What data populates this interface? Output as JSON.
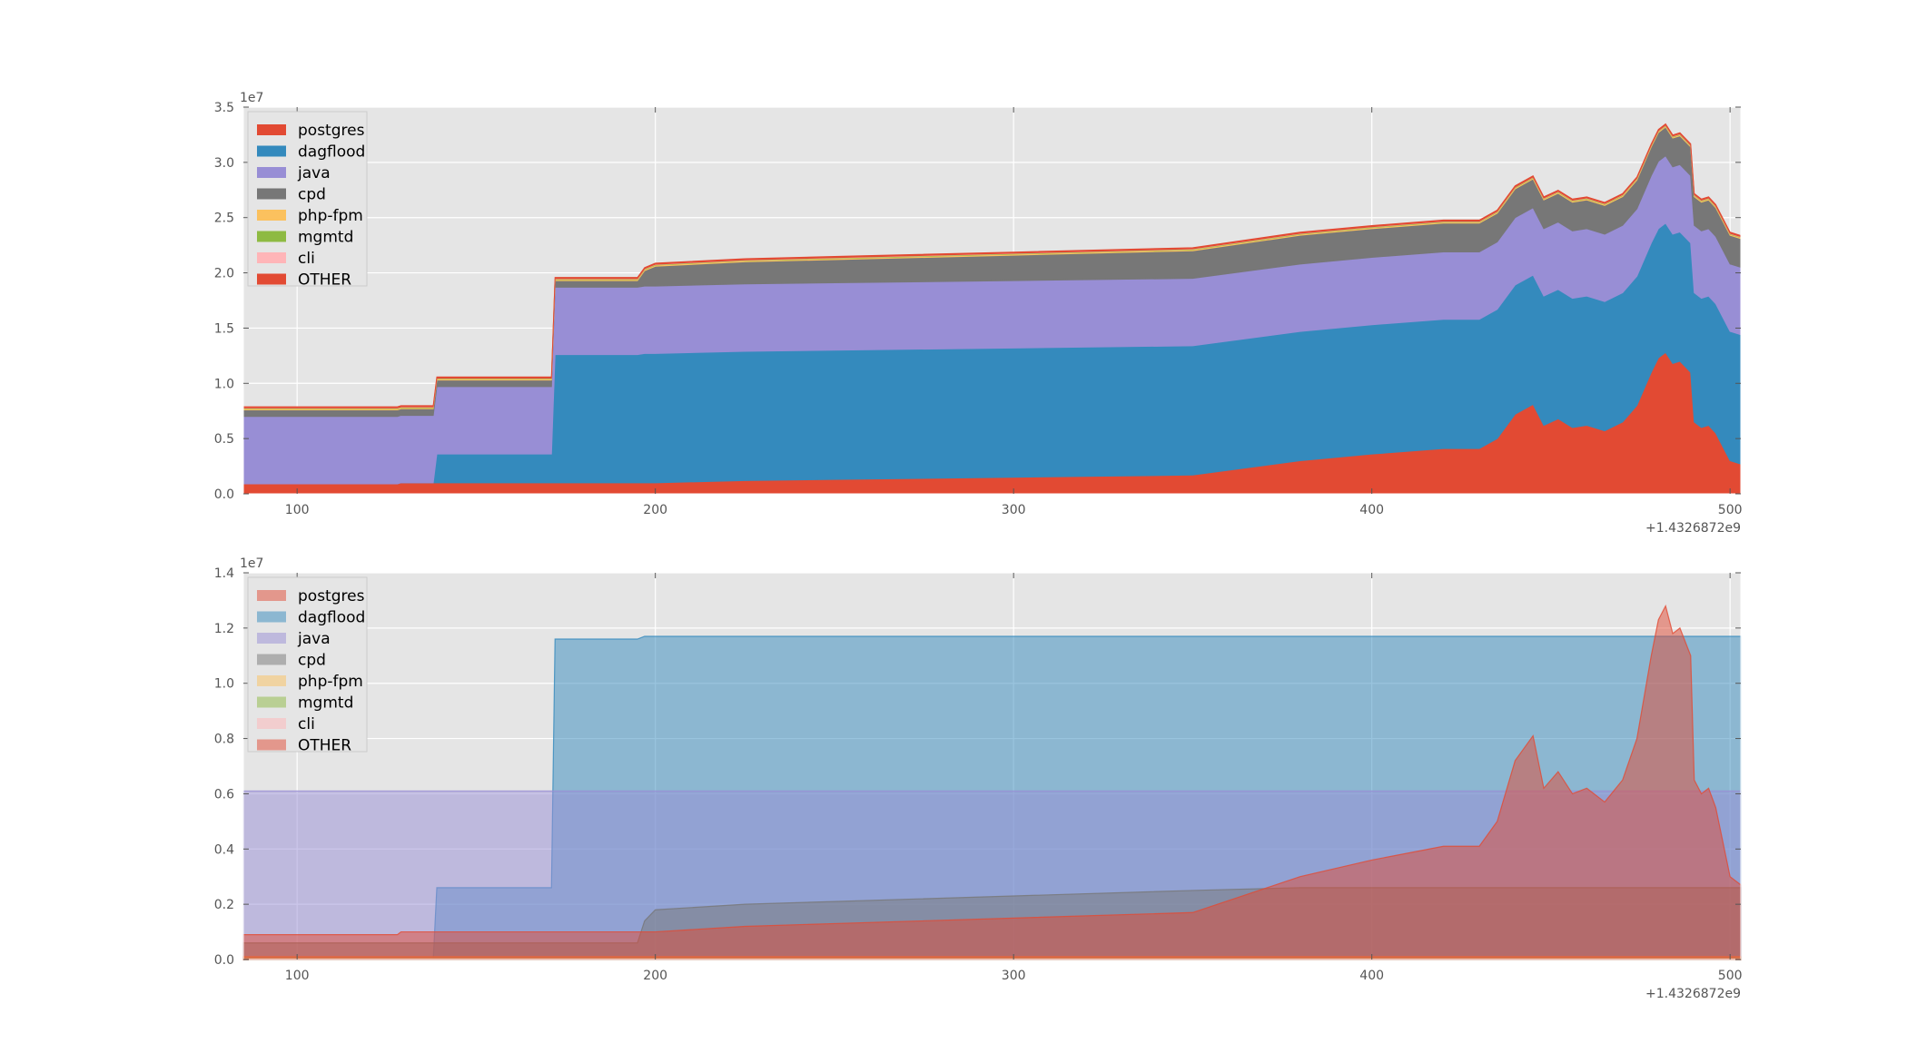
{
  "chart_data": [
    {
      "type": "area",
      "stacked": true,
      "x_offset_label": "+1.4326872e9",
      "y_scale_label": "1e7",
      "xlim": [
        85,
        503
      ],
      "ylim": [
        0,
        3.5
      ],
      "xticks": [
        100,
        200,
        300,
        400,
        500
      ],
      "yticks": [
        0.0,
        0.5,
        1.0,
        1.5,
        2.0,
        2.5,
        3.0,
        3.5
      ],
      "grid": true,
      "legend_position": "top-left",
      "series_names": [
        "postgres",
        "dagflood",
        "java",
        "cpd",
        "php-fpm",
        "mgmtd",
        "cli",
        "OTHER"
      ],
      "colors": [
        "#E24A33",
        "#348ABD",
        "#988ED5",
        "#777777",
        "#FBC15E",
        "#8EBA42",
        "#FFB5B8",
        "#E24A33"
      ],
      "x": [
        85,
        128,
        129,
        138,
        139,
        171,
        172,
        195,
        197,
        200,
        225,
        250,
        300,
        350,
        380,
        400,
        420,
        430,
        435,
        440,
        445,
        448,
        452,
        456,
        460,
        465,
        470,
        474,
        478,
        480,
        482,
        484,
        486,
        489,
        490,
        492,
        494,
        496,
        500,
        503
      ],
      "series": [
        {
          "name": "postgres",
          "values": [
            0.09,
            0.09,
            0.1,
            0.1,
            0.1,
            0.1,
            0.1,
            0.1,
            0.1,
            0.1,
            0.12,
            0.13,
            0.15,
            0.17,
            0.3,
            0.36,
            0.41,
            0.41,
            0.5,
            0.72,
            0.81,
            0.62,
            0.68,
            0.6,
            0.62,
            0.57,
            0.65,
            0.8,
            1.1,
            1.23,
            1.28,
            1.18,
            1.2,
            1.1,
            0.65,
            0.6,
            0.62,
            0.55,
            0.3,
            0.27
          ]
        },
        {
          "name": "dagflood",
          "values": [
            0.0,
            0.0,
            0.0,
            0.0,
            0.26,
            0.26,
            1.16,
            1.16,
            1.17,
            1.17,
            1.17,
            1.17,
            1.17,
            1.17,
            1.17,
            1.17,
            1.17,
            1.17,
            1.17,
            1.17,
            1.17,
            1.17,
            1.17,
            1.17,
            1.17,
            1.17,
            1.17,
            1.17,
            1.17,
            1.17,
            1.17,
            1.17,
            1.17,
            1.17,
            1.17,
            1.17,
            1.17,
            1.17,
            1.17,
            1.17
          ]
        },
        {
          "name": "java",
          "values": [
            0.61,
            0.61,
            0.61,
            0.61,
            0.61,
            0.61,
            0.61,
            0.61,
            0.61,
            0.61,
            0.61,
            0.61,
            0.61,
            0.61,
            0.61,
            0.61,
            0.61,
            0.61,
            0.61,
            0.61,
            0.61,
            0.61,
            0.61,
            0.61,
            0.61,
            0.61,
            0.61,
            0.61,
            0.61,
            0.61,
            0.61,
            0.61,
            0.61,
            0.61,
            0.61,
            0.61,
            0.61,
            0.61,
            0.61,
            0.61
          ]
        },
        {
          "name": "cpd",
          "values": [
            0.06,
            0.06,
            0.06,
            0.06,
            0.06,
            0.06,
            0.06,
            0.06,
            0.14,
            0.18,
            0.2,
            0.21,
            0.23,
            0.25,
            0.26,
            0.26,
            0.26,
            0.26,
            0.26,
            0.26,
            0.26,
            0.26,
            0.26,
            0.26,
            0.26,
            0.26,
            0.26,
            0.26,
            0.26,
            0.26,
            0.26,
            0.26,
            0.26,
            0.26,
            0.26,
            0.26,
            0.26,
            0.26,
            0.26,
            0.26
          ]
        },
        {
          "name": "php-fpm",
          "values": [
            0.01,
            0.01,
            0.01,
            0.01,
            0.01,
            0.01,
            0.01,
            0.01,
            0.01,
            0.01,
            0.01,
            0.01,
            0.01,
            0.01,
            0.01,
            0.01,
            0.01,
            0.01,
            0.01,
            0.01,
            0.01,
            0.01,
            0.01,
            0.01,
            0.01,
            0.01,
            0.01,
            0.01,
            0.01,
            0.01,
            0.01,
            0.01,
            0.01,
            0.01,
            0.01,
            0.01,
            0.01,
            0.01,
            0.01,
            0.01
          ]
        },
        {
          "name": "mgmtd",
          "values": [
            0.005,
            0.005,
            0.005,
            0.005,
            0.005,
            0.005,
            0.005,
            0.005,
            0.005,
            0.005,
            0.005,
            0.005,
            0.005,
            0.005,
            0.005,
            0.005,
            0.005,
            0.005,
            0.005,
            0.005,
            0.005,
            0.005,
            0.005,
            0.005,
            0.005,
            0.005,
            0.005,
            0.005,
            0.005,
            0.005,
            0.005,
            0.005,
            0.005,
            0.005,
            0.005,
            0.005,
            0.005,
            0.005,
            0.005,
            0.005
          ]
        },
        {
          "name": "cli",
          "values": [
            0.003,
            0.003,
            0.003,
            0.003,
            0.003,
            0.003,
            0.003,
            0.003,
            0.003,
            0.003,
            0.003,
            0.003,
            0.003,
            0.003,
            0.003,
            0.003,
            0.003,
            0.003,
            0.003,
            0.003,
            0.003,
            0.003,
            0.003,
            0.003,
            0.003,
            0.003,
            0.003,
            0.003,
            0.003,
            0.003,
            0.003,
            0.003,
            0.003,
            0.003,
            0.003,
            0.003,
            0.003,
            0.003,
            0.003,
            0.003
          ]
        },
        {
          "name": "OTHER",
          "values": [
            0.01,
            0.01,
            0.01,
            0.01,
            0.01,
            0.01,
            0.01,
            0.01,
            0.01,
            0.01,
            0.01,
            0.01,
            0.01,
            0.01,
            0.01,
            0.01,
            0.01,
            0.01,
            0.01,
            0.01,
            0.01,
            0.01,
            0.01,
            0.01,
            0.01,
            0.01,
            0.01,
            0.01,
            0.01,
            0.01,
            0.01,
            0.01,
            0.01,
            0.01,
            0.01,
            0.01,
            0.01,
            0.01,
            0.01,
            0.01
          ]
        }
      ]
    },
    {
      "type": "area",
      "stacked": false,
      "x_offset_label": "+1.4326872e9",
      "y_scale_label": "1e7",
      "xlim": [
        85,
        503
      ],
      "ylim": [
        0,
        1.4
      ],
      "xticks": [
        100,
        200,
        300,
        400,
        500
      ],
      "yticks": [
        0.0,
        0.2,
        0.4,
        0.6,
        0.8,
        1.0,
        1.2,
        1.4
      ],
      "grid": true,
      "legend_position": "top-left",
      "series_names": [
        "postgres",
        "dagflood",
        "java",
        "cpd",
        "php-fpm",
        "mgmtd",
        "cli",
        "OTHER"
      ],
      "colors": [
        "#E24A33",
        "#348ABD",
        "#988ED5",
        "#777777",
        "#FBC15E",
        "#8EBA42",
        "#FFB5B8",
        "#E24A33"
      ],
      "alpha": 0.5,
      "note_same_series_as_first_chart": true
    }
  ]
}
